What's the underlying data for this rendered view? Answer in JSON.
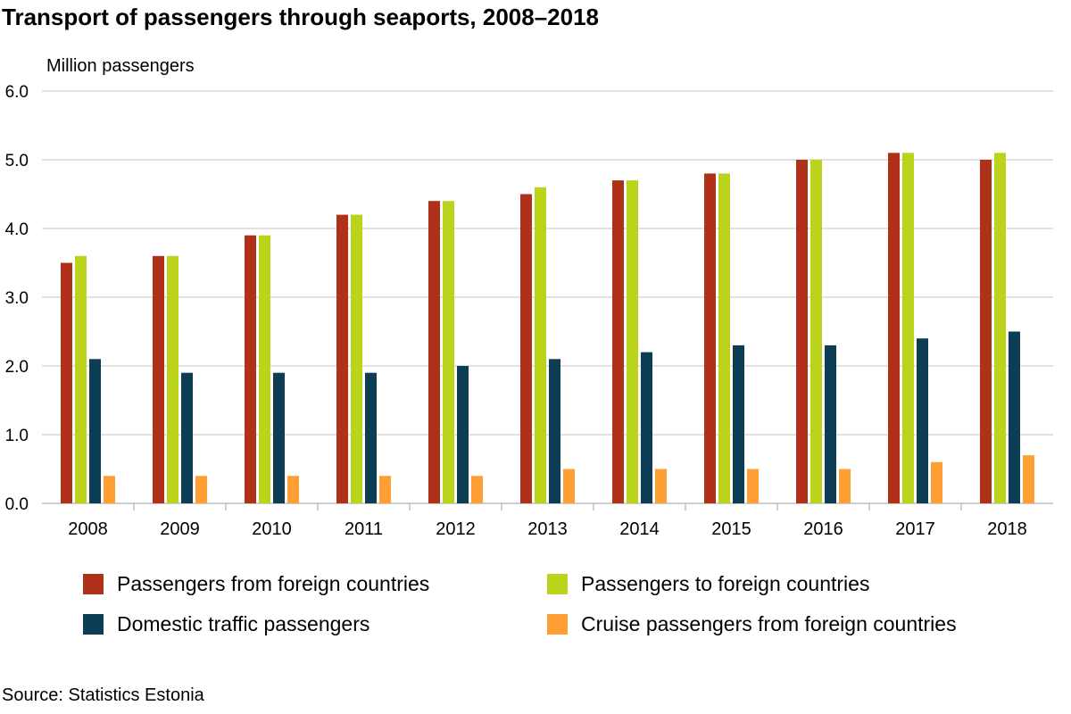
{
  "chart_data": {
    "type": "bar",
    "title": "Transport of passengers through seaports, 2008–2018",
    "ylabel": "Million passengers",
    "xlabel": "",
    "ylim": [
      0,
      6
    ],
    "yticks": [
      "0.0",
      "1.0",
      "2.0",
      "3.0",
      "4.0",
      "5.0",
      "6.0"
    ],
    "grid": true,
    "legend_position": "bottom",
    "categories": [
      "2008",
      "2009",
      "2010",
      "2011",
      "2012",
      "2013",
      "2014",
      "2015",
      "2016",
      "2017",
      "2018"
    ],
    "series": [
      {
        "name": "Passengers from foreign countries",
        "color": "#b0311a",
        "values": [
          3.5,
          3.6,
          3.9,
          4.2,
          4.4,
          4.5,
          4.7,
          4.8,
          5.0,
          5.1,
          5.0
        ]
      },
      {
        "name": "Passengers to foreign countries",
        "color": "#bcd31c",
        "values": [
          3.6,
          3.6,
          3.9,
          4.2,
          4.4,
          4.6,
          4.7,
          4.8,
          5.0,
          5.1,
          5.1
        ]
      },
      {
        "name": "Domestic traffic passengers",
        "color": "#0d3d55",
        "values": [
          2.1,
          1.9,
          1.9,
          1.9,
          2.0,
          2.1,
          2.2,
          2.3,
          2.3,
          2.4,
          2.5
        ]
      },
      {
        "name": "Cruise passengers from foreign countries",
        "color": "#ff9f33",
        "values": [
          0.4,
          0.4,
          0.4,
          0.4,
          0.4,
          0.5,
          0.5,
          0.5,
          0.5,
          0.6,
          0.7
        ]
      }
    ]
  },
  "source": "Source: Statistics Estonia"
}
